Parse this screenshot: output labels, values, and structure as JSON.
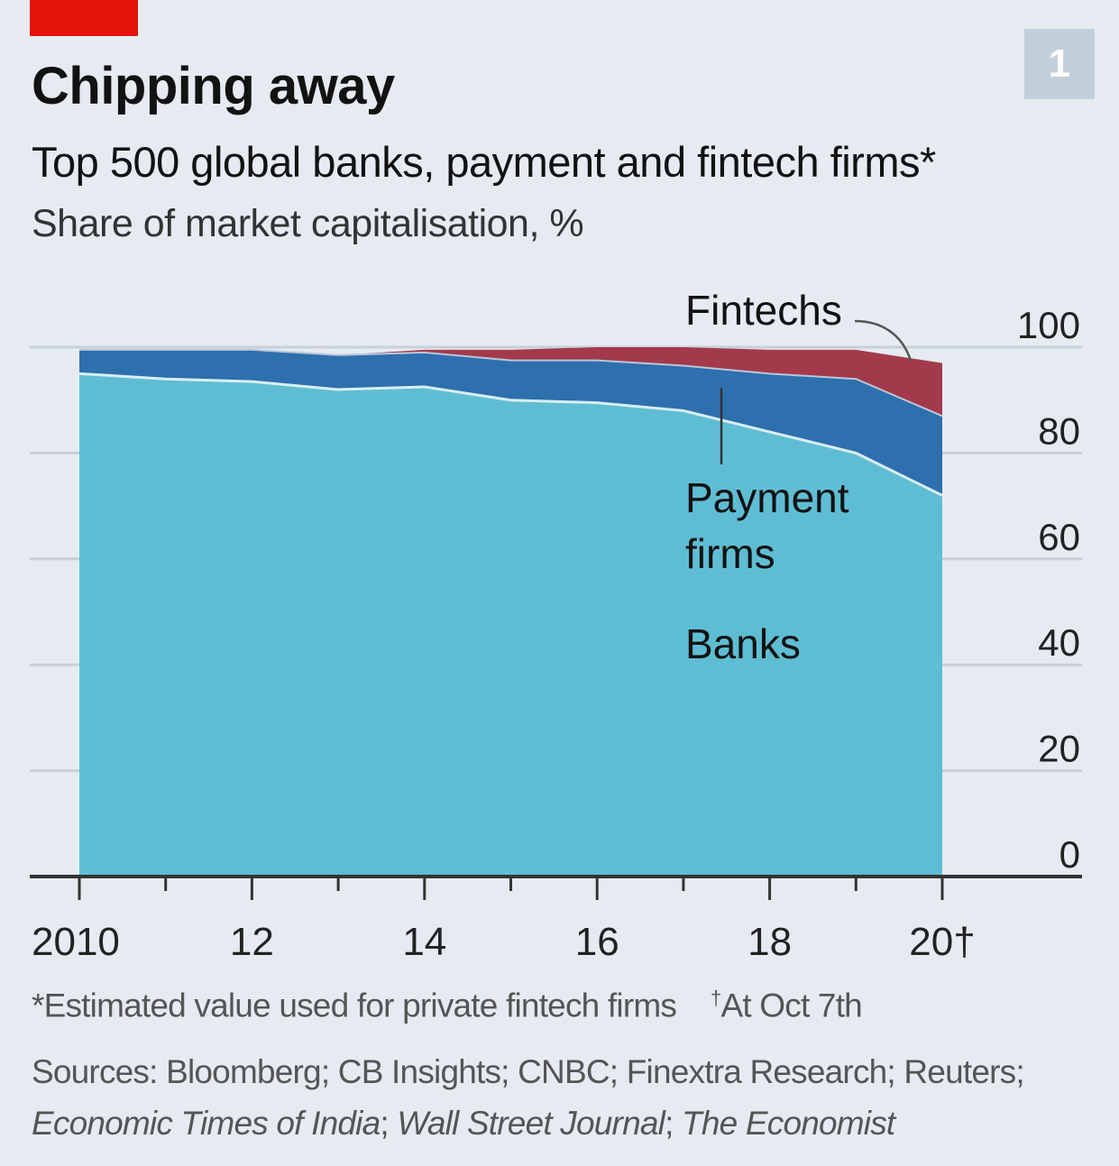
{
  "header": {
    "title": "Chipping away",
    "subtitle": "Top 500 global banks, payment and fintech firms*",
    "unit": "Share of market capitalisation, %",
    "badge": "1"
  },
  "colors": {
    "banks": "#5fbdd3",
    "payment": "#2e6fad",
    "fintechs": "#a33a4c",
    "accent": "#e3120b"
  },
  "chart_data": {
    "type": "area",
    "stacked": true,
    "x": [
      2010,
      2011,
      2012,
      2013,
      2014,
      2015,
      2016,
      2017,
      2018,
      2019,
      2020
    ],
    "x_tick_labels": [
      {
        "x": 2010,
        "label": "2010"
      },
      {
        "x": 2012,
        "label": "12"
      },
      {
        "x": 2014,
        "label": "14"
      },
      {
        "x": 2016,
        "label": "16"
      },
      {
        "x": 2018,
        "label": "18"
      },
      {
        "x": 2020,
        "label": "20†"
      }
    ],
    "series": [
      {
        "name": "Banks",
        "values": [
          95,
          94,
          93.5,
          92,
          92.5,
          90,
          89.5,
          88,
          84,
          80,
          72
        ]
      },
      {
        "name": "Payment firms",
        "values": [
          4.5,
          5.5,
          6,
          6.5,
          6.5,
          7.5,
          8,
          8.5,
          11,
          14,
          15
        ]
      },
      {
        "name": "Fintechs",
        "values": [
          0,
          0,
          0,
          0,
          0.5,
          2,
          2.5,
          3.5,
          4.5,
          5.5,
          10
        ]
      }
    ],
    "ylim": [
      0,
      100
    ],
    "yticks": [
      0,
      20,
      40,
      60,
      80,
      100
    ],
    "y_axis_side": "right",
    "grid": true,
    "labels": {
      "fintechs": "Fintechs",
      "payment_line1": "Payment",
      "payment_line2": "firms",
      "banks": "Banks"
    }
  },
  "footer": {
    "note_estimate": "*Estimated value used for private fintech firms",
    "note_dagger_mark": "†",
    "note_date": "At Oct 7th",
    "sources_plain": "Sources: Bloomberg; CB Insights; CNBC; Finextra Research; Reuters;",
    "source_eti": "Economic Times of India",
    "source_wsj": "Wall Street Journal",
    "source_economist": "The Economist",
    "sep": "; "
  }
}
